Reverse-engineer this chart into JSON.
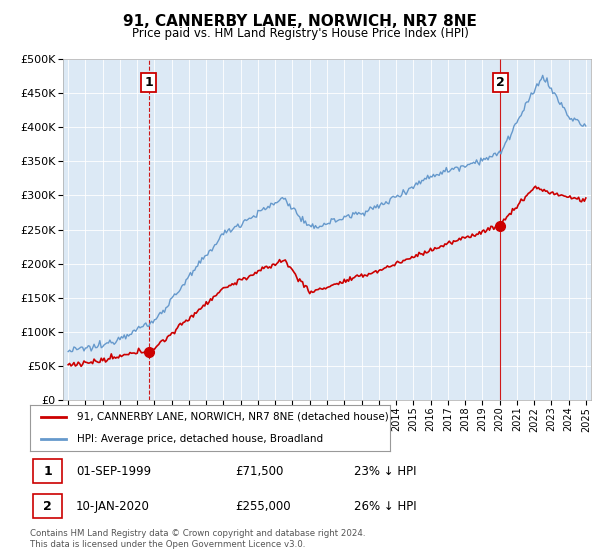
{
  "title": "91, CANNERBY LANE, NORWICH, NR7 8NE",
  "subtitle": "Price paid vs. HM Land Registry's House Price Index (HPI)",
  "legend_line1": "91, CANNERBY LANE, NORWICH, NR7 8NE (detached house)",
  "legend_line2": "HPI: Average price, detached house, Broadland",
  "ann1_x": 1999.67,
  "ann1_y": 71500,
  "ann2_x": 2020.03,
  "ann2_y": 255000,
  "footer1": "Contains HM Land Registry data © Crown copyright and database right 2024.",
  "footer2": "This data is licensed under the Open Government Licence v3.0.",
  "red_color": "#cc0000",
  "blue_color": "#6699cc",
  "bg_color": "#dce9f5",
  "ylim": [
    0,
    500000
  ],
  "yticks": [
    0,
    50000,
    100000,
    150000,
    200000,
    250000,
    300000,
    350000,
    400000,
    450000,
    500000
  ],
  "ytick_labels": [
    "£0",
    "£50K",
    "£100K",
    "£150K",
    "£200K",
    "£250K",
    "£300K",
    "£350K",
    "£400K",
    "£450K",
    "£500K"
  ],
  "xlim_start": 1994.7,
  "xlim_end": 2025.3,
  "ann1_label": "1",
  "ann2_label": "2",
  "row1_date": "01-SEP-1999",
  "row1_amount": "£71,500",
  "row1_pct": "23% ↓ HPI",
  "row2_date": "10-JAN-2020",
  "row2_amount": "£255,000",
  "row2_pct": "26% ↓ HPI"
}
